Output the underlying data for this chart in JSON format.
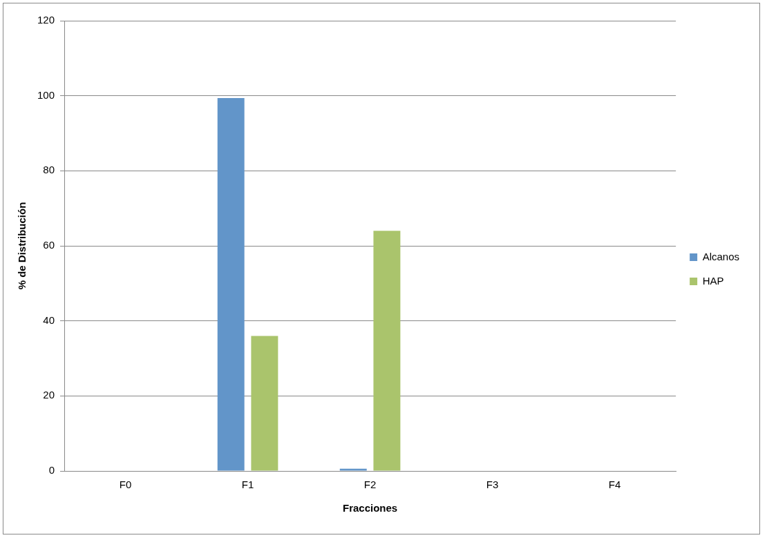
{
  "chart_data": {
    "type": "bar",
    "xlabel": "Fracciones",
    "ylabel": "% de Distribución",
    "categories": [
      "F0",
      "F1",
      "F2",
      "F3",
      "F4"
    ],
    "series": [
      {
        "name": "Alcanos",
        "color": "#6295c9",
        "values": [
          0,
          99.4,
          0.6,
          0,
          0
        ]
      },
      {
        "name": "HAP",
        "color": "#aac46c",
        "values": [
          0,
          36,
          64,
          0,
          0
        ]
      }
    ],
    "ylim": [
      0,
      120
    ],
    "yticks": [
      0,
      20,
      40,
      60,
      80,
      100,
      120
    ],
    "grid": "y",
    "legend": "right"
  }
}
